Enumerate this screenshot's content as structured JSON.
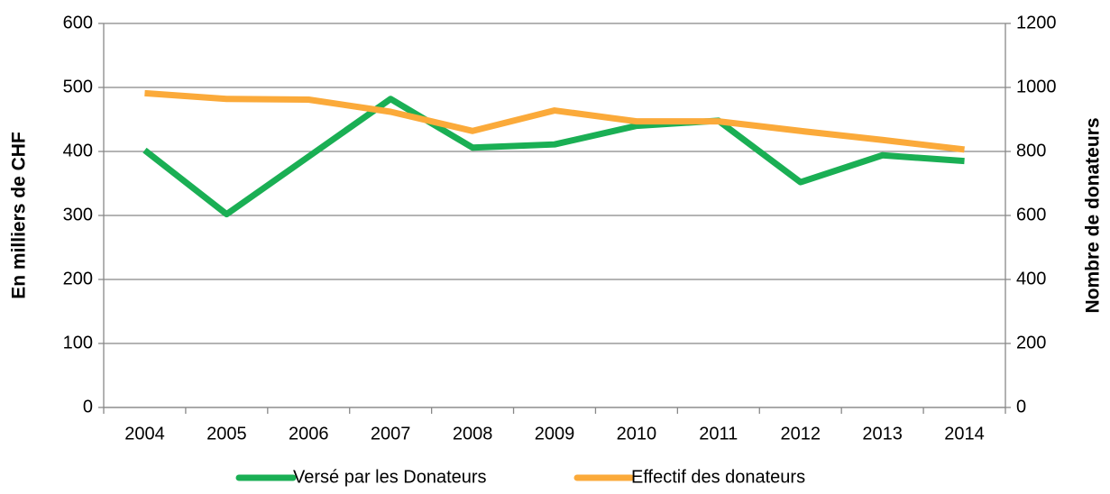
{
  "chart_data": {
    "type": "line",
    "categories": [
      "2004",
      "2005",
      "2006",
      "2007",
      "2008",
      "2009",
      "2010",
      "2011",
      "2012",
      "2013",
      "2014"
    ],
    "y_label": "En milliers de CHF",
    "y2_label": "Nombre de donateurs",
    "ylim": [
      0,
      600
    ],
    "yticks": [
      0,
      100,
      200,
      300,
      400,
      500,
      600
    ],
    "y2lim": [
      0,
      1200
    ],
    "y2ticks": [
      0,
      200,
      400,
      600,
      800,
      1000,
      1200
    ],
    "grid": true,
    "legend": "bottom",
    "series": [
      {
        "name": "Versé par les Donateurs",
        "color": "#1aaf54",
        "values": [
          402,
          302,
          392,
          482,
          406,
          411,
          440,
          448,
          352,
          394,
          385
        ]
      },
      {
        "name": "Effectif des donateurs",
        "color": "#fbaa3a",
        "axis": "y2",
        "values": [
          982,
          964,
          962,
          924,
          864,
          928,
          894,
          894,
          864,
          836,
          806
        ]
      }
    ]
  }
}
